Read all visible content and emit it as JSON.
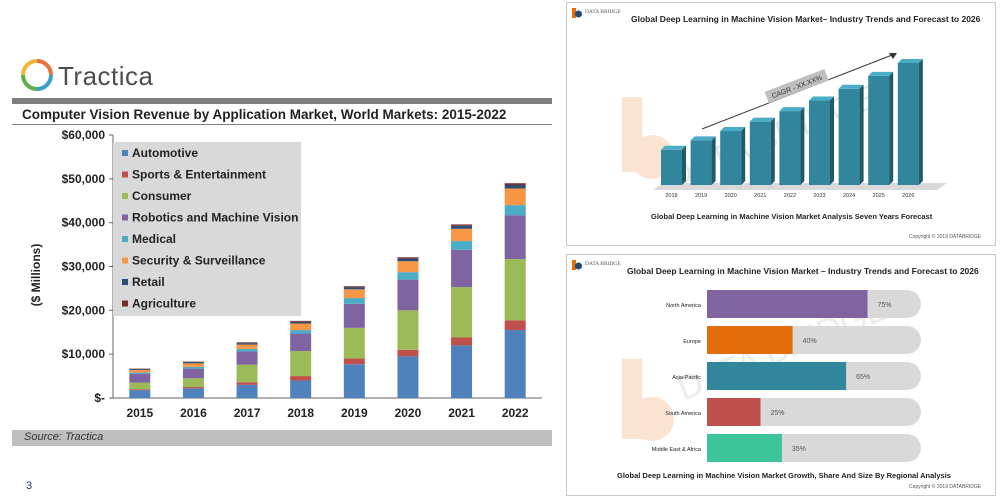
{
  "slide": {
    "number": "3"
  },
  "tractica": {
    "logo": "Tractica",
    "title": "Computer Vision Revenue by Application Market, World Markets: 2015-2022",
    "source": "Source: Tractica",
    "colors": {
      "accent": "#7f7f7f",
      "legend_bg": "#d9d9d9"
    }
  },
  "dbmr_top": {
    "logo": "DATA BRIDGE",
    "title": "Global Deep Learning in Machine Vision Market– Industry Trends and Forecast to 2026",
    "caption": "Global Deep Learning in Machine Vision Market Analysis Seven Years Forecast",
    "copyright": "Copyright © 2019 DATABRIDGE",
    "cagr_label": "CAGR - XX.XX%",
    "watermark": "DATA BRIDGE"
  },
  "dbmr_bottom": {
    "logo": "DATA BRIDGE",
    "title": "Global Deep Learning in Machine Vision Market – Industry Trends and Forecast to 2026",
    "caption": "Global Deep Learning in Machine Vision Market Growth, Share And Size By Regional Analysis",
    "copyright": "Copyright © 2019 DATABRIDGE",
    "watermark": "DATA BRIDGE"
  },
  "chart_data": [
    {
      "type": "bar",
      "stacked": true,
      "title": "Computer Vision Revenue by Application Market, World Markets: 2015-2022",
      "ylabel": "($ Millions)",
      "xlabel": "",
      "categories": [
        "2015",
        "2016",
        "2017",
        "2018",
        "2019",
        "2020",
        "2021",
        "2022"
      ],
      "yticks": [
        "$-",
        "$10,000",
        "$20,000",
        "$30,000",
        "$40,000",
        "$50,000",
        "$60,000"
      ],
      "ylim": [
        0,
        60000
      ],
      "legend_position": "top-left",
      "grid": false,
      "series": [
        {
          "name": "Automotive",
          "color": "#4f81bd",
          "values": [
            1800,
            2200,
            3000,
            4000,
            7700,
            9500,
            12000,
            15500
          ]
        },
        {
          "name": "Sports & Entertainment",
          "color": "#c0504d",
          "values": [
            200,
            300,
            600,
            1000,
            1300,
            1500,
            1800,
            2200
          ]
        },
        {
          "name": "Consumer",
          "color": "#9bbb59",
          "values": [
            1500,
            2000,
            4000,
            5700,
            7000,
            9000,
            11500,
            14000
          ]
        },
        {
          "name": "Robotics and Machine Vision",
          "color": "#8064a2",
          "values": [
            2000,
            2200,
            3000,
            4000,
            5500,
            7000,
            8500,
            10000
          ]
        },
        {
          "name": "Medical",
          "color": "#4bacc6",
          "values": [
            300,
            400,
            600,
            800,
            1300,
            1700,
            2000,
            2300
          ]
        },
        {
          "name": "Security & Surveillance",
          "color": "#f79646",
          "values": [
            600,
            800,
            1000,
            1500,
            2000,
            2500,
            2800,
            3800
          ]
        },
        {
          "name": "Retail",
          "color": "#2c4d75",
          "values": [
            200,
            300,
            300,
            400,
            500,
            600,
            700,
            800
          ]
        },
        {
          "name": "Agriculture",
          "color": "#772c2a",
          "values": [
            100,
            100,
            200,
            200,
            200,
            300,
            300,
            400
          ]
        }
      ]
    },
    {
      "type": "bar",
      "title": "Global Deep Learning in Machine Vision Market– Industry Trends and Forecast to 2026",
      "categories": [
        "2018",
        "2019",
        "2020",
        "2021",
        "2022",
        "2023",
        "2024",
        "2025",
        "2026"
      ],
      "values": [
        30,
        38,
        46,
        54,
        63,
        72,
        82,
        93,
        104
      ],
      "annotation": "CAGR - XX.XX%",
      "color": "#31859c"
    },
    {
      "type": "bar",
      "orientation": "horizontal",
      "title": "Global Deep Learning in Machine Vision Market – Industry Trends and Forecast to 2026",
      "categories": [
        "North America",
        "Europe",
        "Asia-Pacific",
        "South America",
        "Middle East & Africa"
      ],
      "values": [
        75,
        40,
        65,
        25,
        35
      ],
      "value_labels": [
        "75%",
        "40%",
        "65%",
        "25%",
        "35%"
      ],
      "xlim": [
        0,
        100
      ],
      "colors": [
        "#8064a2",
        "#e46c0a",
        "#31859c",
        "#c0504d",
        "#3cc399"
      ]
    }
  ]
}
